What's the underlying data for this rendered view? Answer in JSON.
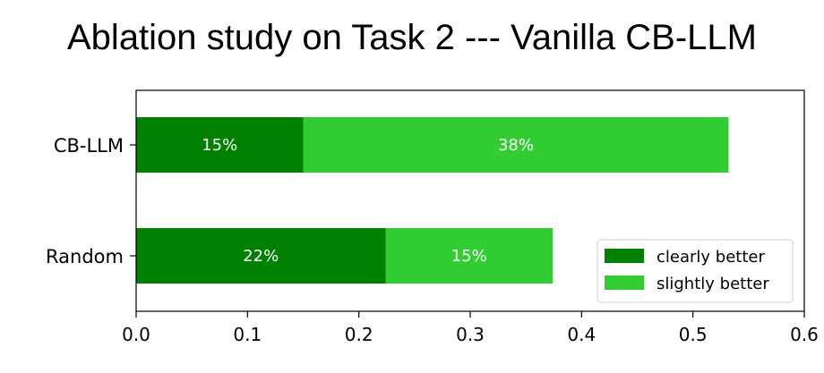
{
  "chart_data": {
    "type": "bar",
    "orientation": "horizontal",
    "stacked": true,
    "title": "Ablation study on Task 2 --- Vanilla CB-LLM",
    "categories": [
      "CB-LLM",
      "Random"
    ],
    "series": [
      {
        "name": "clearly better",
        "color": "#008000",
        "values": [
          0.15,
          0.224
        ],
        "labels": [
          "15%",
          "22%"
        ]
      },
      {
        "name": "slightly better",
        "color": "#32cd32",
        "values": [
          0.382,
          0.15
        ],
        "labels": [
          "38%",
          "15%"
        ]
      }
    ],
    "xlim": [
      0.0,
      0.6
    ],
    "xticks": [
      "0.0",
      "0.1",
      "0.2",
      "0.3",
      "0.4",
      "0.5",
      "0.6"
    ],
    "xlabel": "",
    "ylabel": "",
    "grid": false,
    "legend_position": "lower-right"
  }
}
